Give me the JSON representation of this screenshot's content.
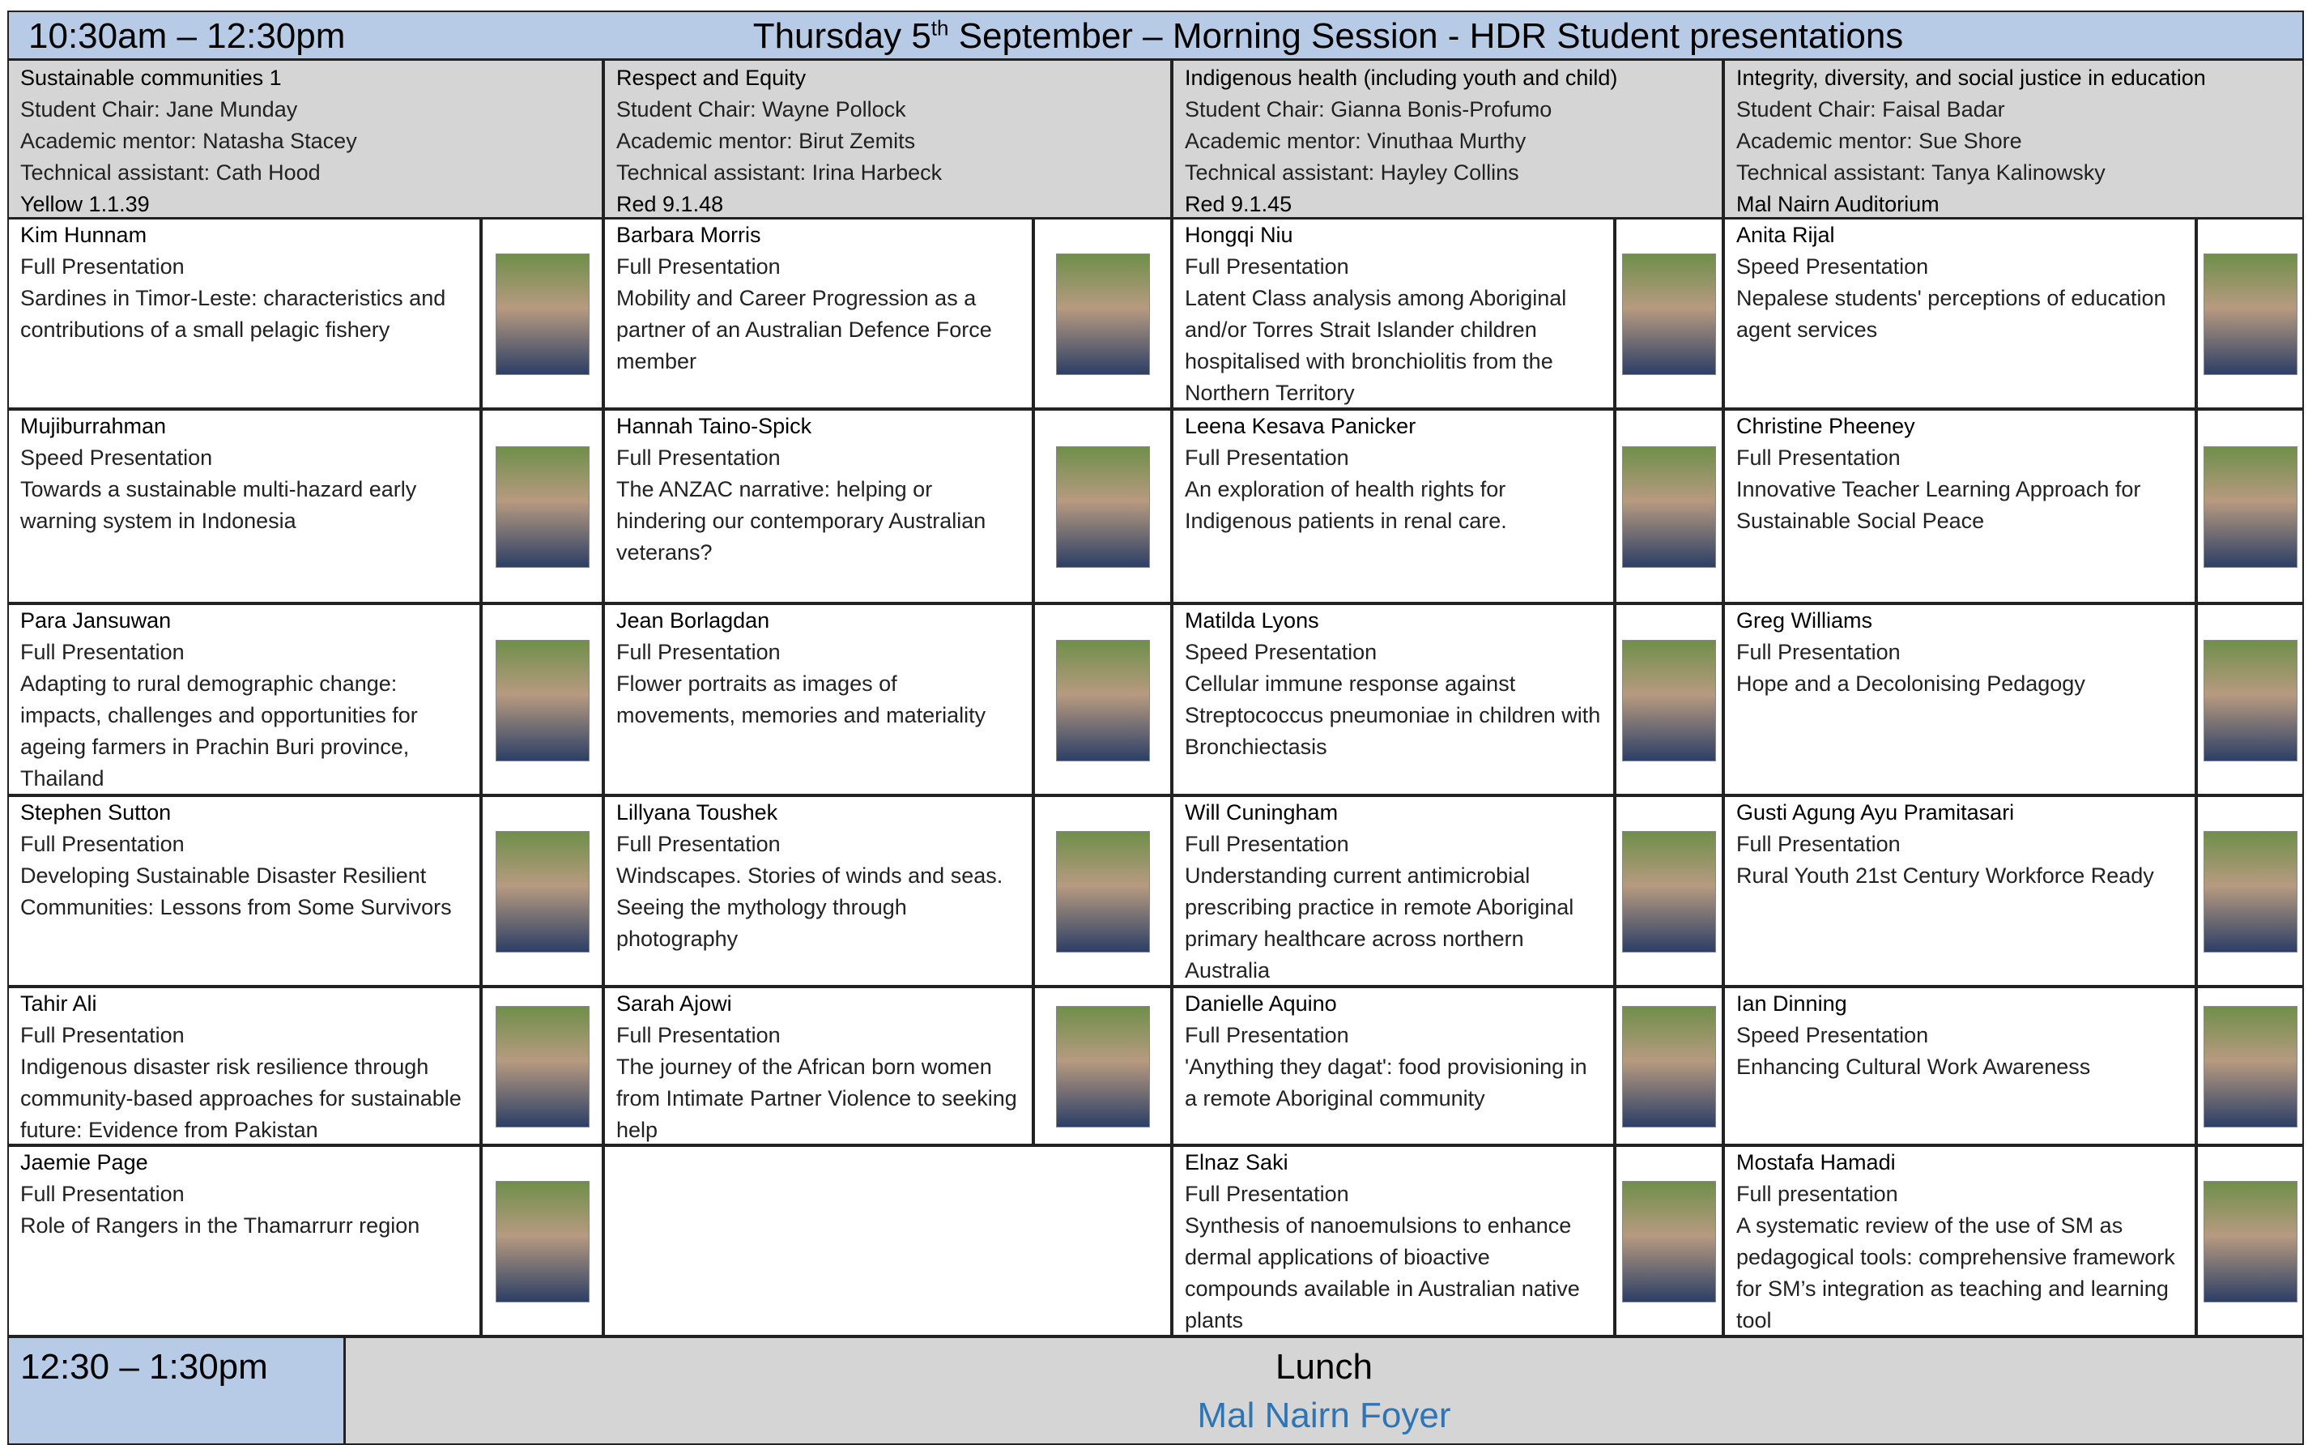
{
  "header": {
    "time": "10:30am – 12:30pm",
    "title": [
      "Thursday 5",
      "th",
      " September – Morning Session - HDR Student presentations"
    ]
  },
  "sessions": [
    {
      "title": "Sustainable communities 1",
      "chair": "Student Chair: Jane Munday",
      "mentor": "Academic mentor: Natasha Stacey",
      "assistant": "Technical assistant: Cath Hood",
      "room": "Yellow 1.1.39"
    },
    {
      "title": "Respect and Equity",
      "chair": "Student Chair: Wayne Pollock",
      "mentor": "Academic mentor: Birut Zemits",
      "assistant": "Technical assistant: Irina Harbeck",
      "room": "Red 9.1.48"
    },
    {
      "title": "Indigenous health (including youth and child)",
      "chair": "Student Chair: Gianna Bonis-Profumo",
      "mentor": "Academic mentor: Vinuthaa Murthy",
      "assistant": "Technical assistant: Hayley Collins",
      "room": "Red 9.1.45"
    },
    {
      "title": "Integrity, diversity, and social justice in education",
      "chair": "Student Chair: Faisal Badar",
      "mentor": "Academic mentor: Sue Shore",
      "assistant": "Technical assistant: Tanya Kalinowsky",
      "room": "Mal Nairn Auditorium"
    }
  ],
  "rows": [
    [
      {
        "name": "Kim Hunnam",
        "type": "Full Presentation",
        "title": "Sardines in Timor-Leste: characteristics and contributions of a small pelagic fishery"
      },
      {
        "name": "Barbara Morris",
        "type": "Full Presentation",
        "title": "Mobility and Career Progression as a partner of an Australian Defence Force member"
      },
      {
        "name": "Hongqi Niu",
        "type": "Full Presentation",
        "title": "Latent Class analysis among Aboriginal and/or Torres Strait Islander children hospitalised with bronchiolitis from the Northern Territory"
      },
      {
        "name": "Anita Rijal",
        "type": "Speed Presentation",
        "title": "Nepalese students' perceptions of education agent services"
      }
    ],
    [
      {
        "name": "Mujiburrahman",
        "type": "Speed Presentation",
        "title": "Towards a sustainable multi-hazard early warning system in Indonesia"
      },
      {
        "name": "Hannah Taino-Spick",
        "type": "Full Presentation",
        "title": "The ANZAC narrative: helping or hindering our contemporary Australian veterans?"
      },
      {
        "name": "Leena Kesava Panicker",
        "type": "Full Presentation",
        "title": "An exploration of health rights for Indigenous patients in renal care."
      },
      {
        "name": "Christine Pheeney",
        "type": "Full Presentation",
        "title": "Innovative Teacher Learning Approach for Sustainable Social Peace"
      }
    ],
    [
      {
        "name": "Para Jansuwan",
        "type": "Full Presentation",
        "title": "Adapting to rural demographic change: impacts, challenges and opportunities for ageing farmers in Prachin Buri province, Thailand"
      },
      {
        "name": "Jean Borlagdan",
        "type": "Full Presentation",
        "title": "Flower portraits as images of movements, memories and materiality"
      },
      {
        "name": "Matilda Lyons",
        "type": "Speed Presentation",
        "title": "Cellular immune response against Streptococcus pneumoniae in children with Bronchiectasis"
      },
      {
        "name": "Greg Williams",
        "type": "Full Presentation",
        "title": "Hope and a Decolonising Pedagogy"
      }
    ],
    [
      {
        "name": "Stephen Sutton",
        "type": "Full Presentation",
        "title": "Developing Sustainable Disaster Resilient Communities: Lessons from Some Survivors"
      },
      {
        "name": "Lillyana Toushek",
        "type": "Full Presentation",
        "title": "Windscapes. Stories of winds and seas. Seeing the mythology through photography"
      },
      {
        "name": "Will Cuningham",
        "type": "Full Presentation",
        "title": "Understanding current antimicrobial prescribing practice in remote Aboriginal primary healthcare across northern Australia"
      },
      {
        "name": "Gusti Agung Ayu Pramitasari",
        "type": "Full Presentation",
        "title": "Rural Youth 21st Century Workforce Ready"
      }
    ],
    [
      {
        "name": "Tahir Ali",
        "type": "Full Presentation",
        "title": "Indigenous disaster risk resilience through community-based approaches for sustainable future: Evidence from Pakistan"
      },
      {
        "name": "Sarah Ajowi",
        "type": "Full Presentation",
        "title": "The journey of the African born women from Intimate Partner Violence to seeking help"
      },
      {
        "name": "Danielle Aquino",
        "type": "Full Presentation",
        "title": "'Anything they dagat': food provisioning in a remote Aboriginal community"
      },
      {
        "name": "Ian Dinning",
        "type": "Speed Presentation",
        "title": "Enhancing Cultural Work Awareness"
      }
    ],
    [
      {
        "name": "Jaemie Page",
        "type": "Full Presentation",
        "title": "Role of Rangers in the Thamarrurr region"
      },
      null,
      {
        "name": "Elnaz Saki",
        "type": "Full Presentation",
        "title": "Synthesis of nanoemulsions to enhance dermal applications of bioactive compounds available in Australian native plants"
      },
      {
        "name": "Mostafa Hamadi",
        "type": "Full presentation",
        "title": "A systematic review of the use of SM as pedagogical tools: comprehensive framework for SM’s integration as teaching and learning tool"
      }
    ]
  ],
  "footer": {
    "time": "12:30 – 1:30pm",
    "title": "Lunch",
    "location": "Mal Nairn Foyer"
  }
}
